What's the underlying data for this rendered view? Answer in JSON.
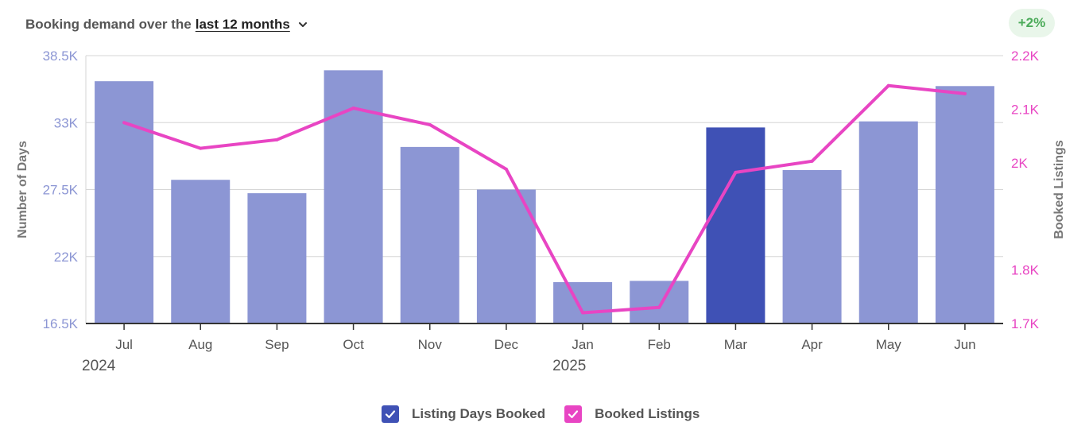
{
  "header": {
    "title_prefix": "Booking demand over the",
    "period_label": "last 12 months",
    "dropdown_icon": "chevron-down-icon"
  },
  "badge": {
    "label": "+2%",
    "color": "#4cab5a"
  },
  "legend": {
    "items": [
      {
        "label": "Listing Days Booked",
        "color": "#3f51b5",
        "checked": true,
        "icon": "checkmark-icon"
      },
      {
        "label": "Booked Listings",
        "color": "#e845c3",
        "checked": true,
        "icon": "checkmark-icon"
      }
    ]
  },
  "chart_data": {
    "type": "bar",
    "categories": [
      "Jul",
      "Aug",
      "Sep",
      "Oct",
      "Nov",
      "Dec",
      "Jan",
      "Feb",
      "Mar",
      "Apr",
      "May",
      "Jun"
    ],
    "year_labels": [
      {
        "label": "2024",
        "at": "Jul"
      },
      {
        "label": "2025",
        "at": "Jan"
      }
    ],
    "series": [
      {
        "name": "Listing Days Booked",
        "kind": "bar",
        "axis": "left",
        "color": "#8c96d4",
        "highlight_color": "#3f51b5",
        "highlight_category": "Mar",
        "values": [
          36400,
          28300,
          27200,
          37300,
          31000,
          27500,
          19900,
          20000,
          32600,
          29100,
          33100,
          36000
        ]
      },
      {
        "name": "Booked Listings",
        "kind": "line",
        "axis": "right",
        "color": "#e845c3",
        "values": [
          2075,
          2027,
          2043,
          2102,
          2071,
          1988,
          1720,
          1730,
          1982,
          2003,
          2144,
          2129
        ]
      }
    ],
    "ylabel": "Number of Days",
    "ylim": [
      16500,
      38500
    ],
    "y_ticks": [
      {
        "value": 16500,
        "label": "16.5K"
      },
      {
        "value": 22000,
        "label": "22K"
      },
      {
        "value": 27500,
        "label": "27.5K"
      },
      {
        "value": 33000,
        "label": "33K"
      },
      {
        "value": 38500,
        "label": "38.5K"
      }
    ],
    "y2label": "Booked Listings",
    "y2lim": [
      1700,
      2200
    ],
    "y2_ticks": [
      {
        "value": 1700,
        "label": "1.7K"
      },
      {
        "value": 1800,
        "label": "1.8K"
      },
      {
        "value": 2000,
        "label": "2K"
      },
      {
        "value": 2100,
        "label": "2.1K"
      },
      {
        "value": 2200,
        "label": "2.2K"
      }
    ],
    "grid": true,
    "axis_colors": {
      "left_ticks": "#8c96d4",
      "right_ticks": "#e845c3",
      "axis_title": "#777777"
    }
  }
}
